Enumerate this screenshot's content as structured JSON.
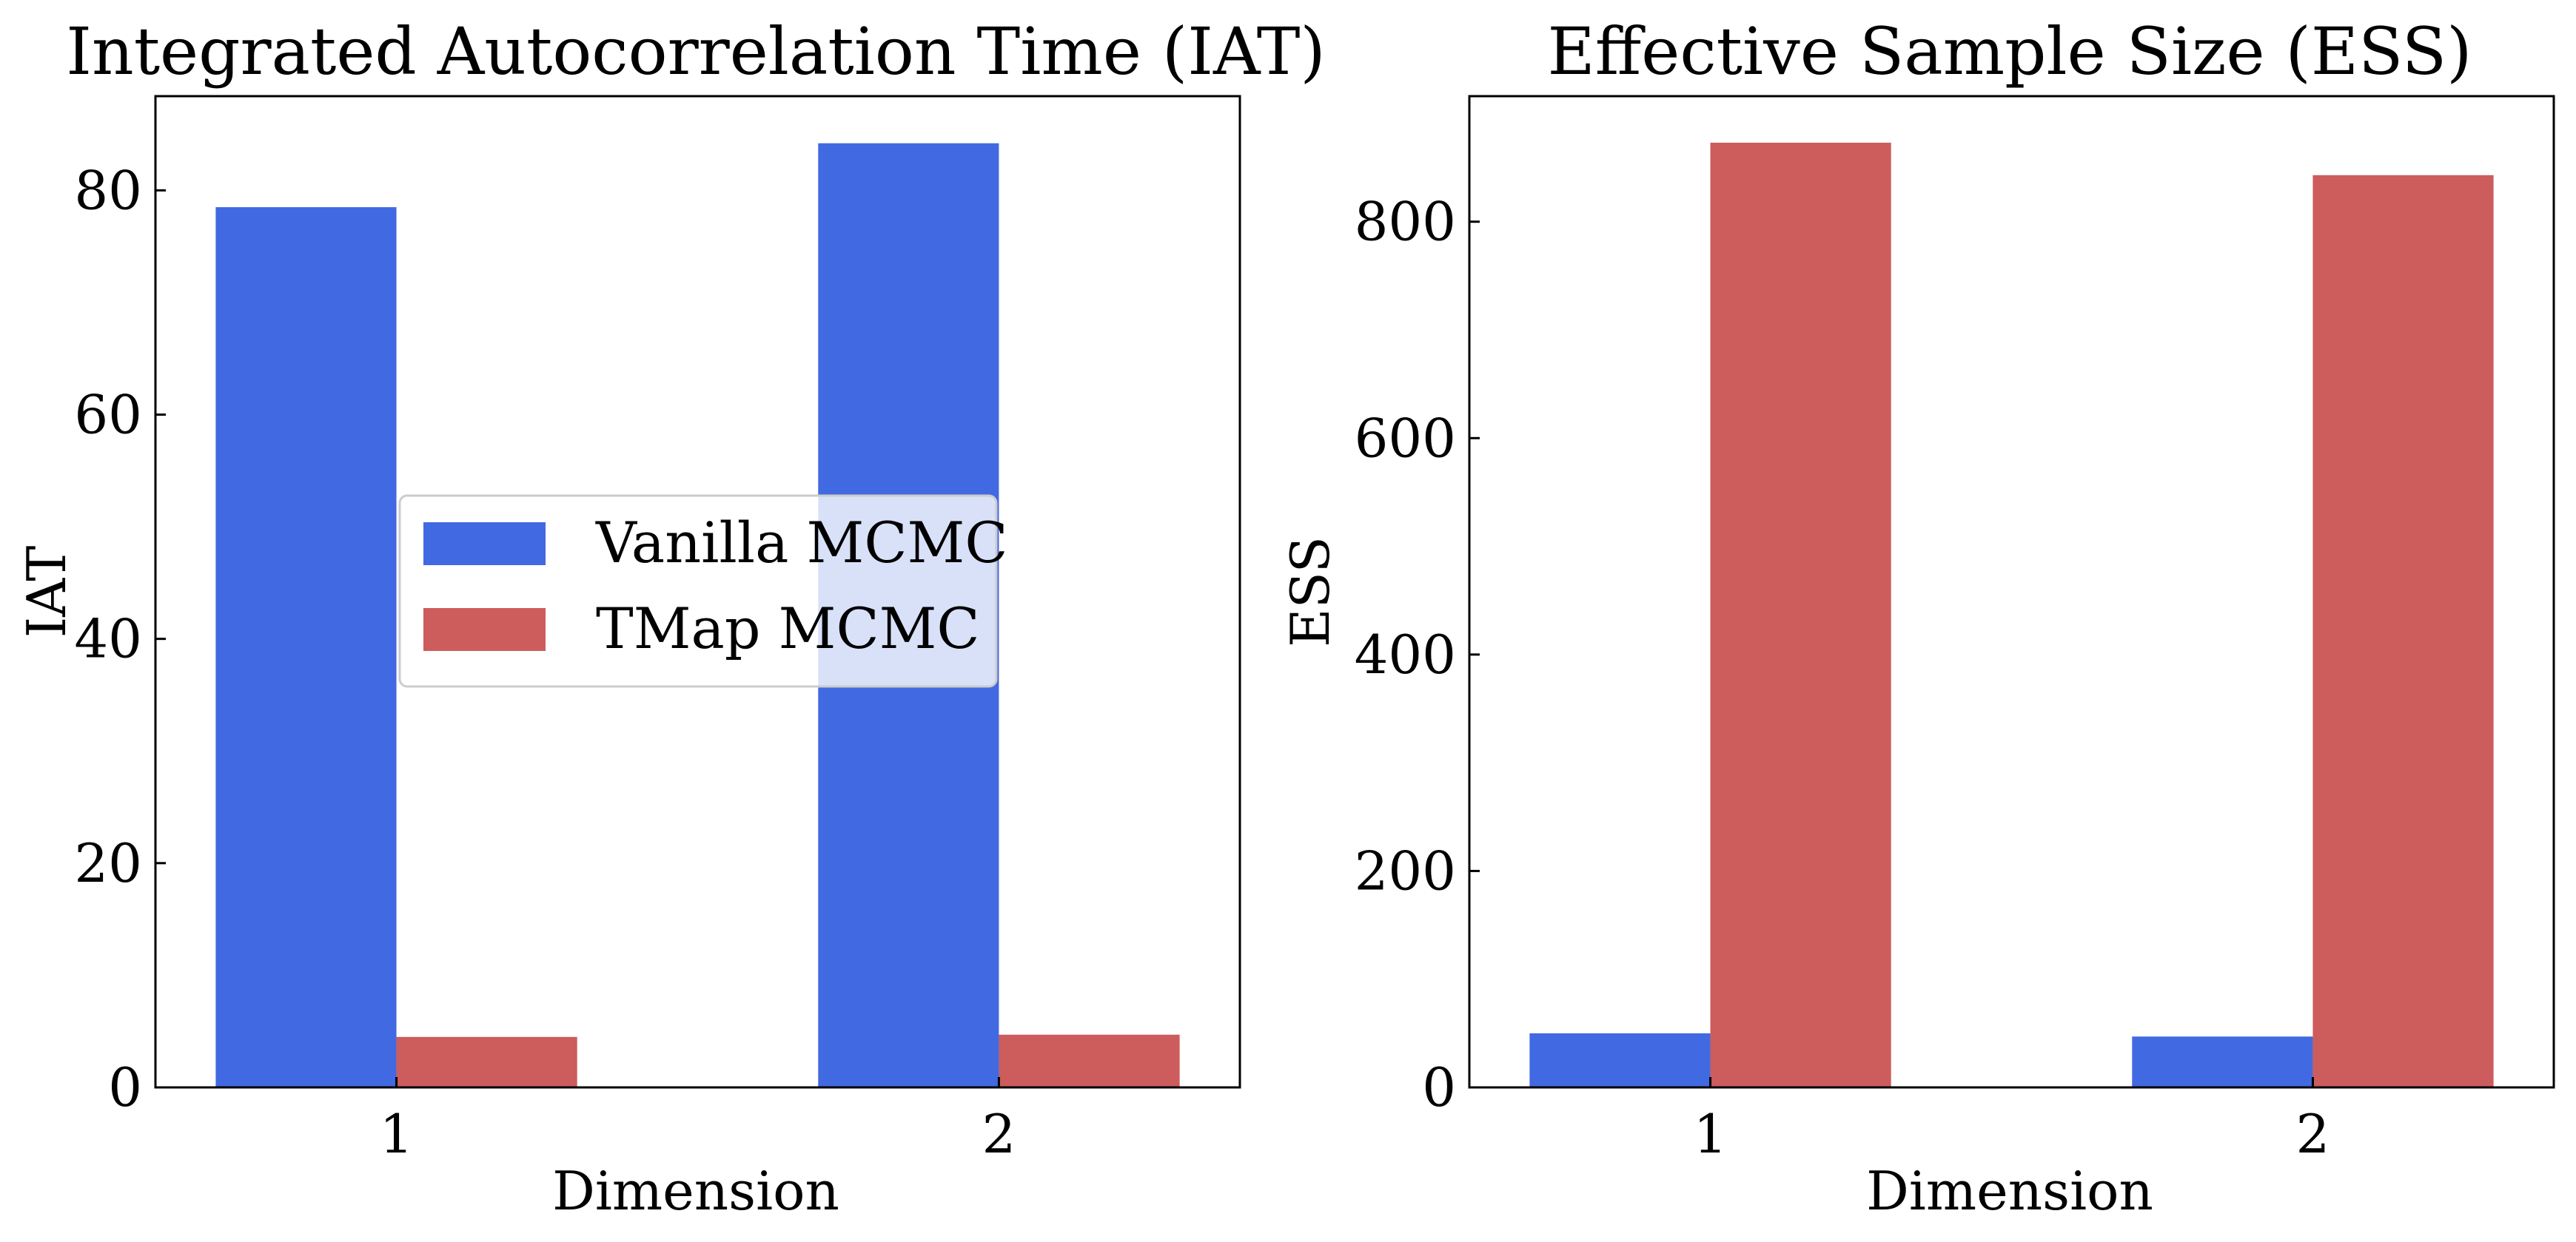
{
  "chart_data": [
    {
      "type": "bar",
      "title": "Integrated Autocorrelation Time (IAT)",
      "xlabel": "Dimension",
      "ylabel": "IAT",
      "categories": [
        "1",
        "2"
      ],
      "series": [
        {
          "name": "Vanilla MCMC",
          "values": [
            78.5,
            84.2
          ],
          "color": "#4169E1"
        },
        {
          "name": "TMap MCMC",
          "values": [
            4.5,
            4.7
          ],
          "color": "#CD5C5C"
        }
      ],
      "ylim": [
        0,
        88.4
      ],
      "yticks": [
        0,
        20,
        40,
        60,
        80
      ],
      "legend": "center",
      "grid": false
    },
    {
      "type": "bar",
      "title": "Effective Sample Size (ESS)",
      "xlabel": "Dimension",
      "ylabel": "ESS",
      "categories": [
        "1",
        "2"
      ],
      "series": [
        {
          "name": "Vanilla MCMC",
          "values": [
            50,
            47
          ],
          "color": "#4169E1"
        },
        {
          "name": "TMap MCMC",
          "values": [
            873,
            843
          ],
          "color": "#CD5C5C"
        }
      ],
      "ylim": [
        0,
        916
      ],
      "yticks": [
        0,
        200,
        400,
        600,
        800
      ],
      "legend": "none",
      "grid": false
    }
  ]
}
